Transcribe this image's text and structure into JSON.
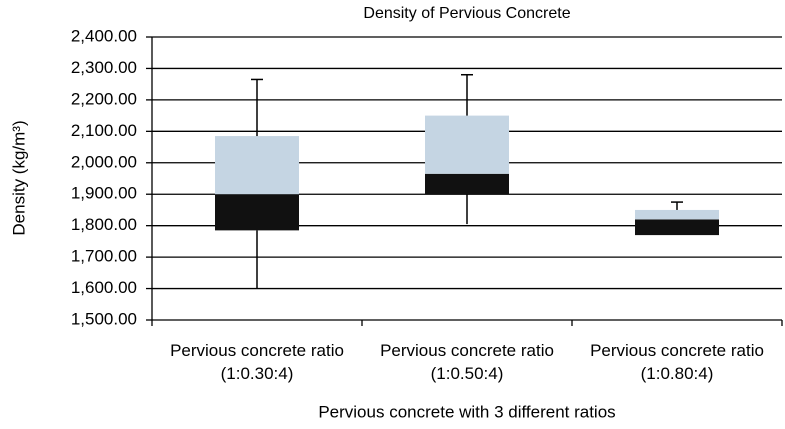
{
  "chart_data": {
    "type": "box",
    "title": "Density of Pervious Concrete",
    "x_label": "Pervious concrete with 3 different ratios",
    "y_label": "Density (kg/m³)",
    "categories": [
      "Pervious concrete ratio (1:0.30:4)",
      "Pervious concrete ratio (1:0.50:4)",
      "Pervious concrete ratio (1:0.80:4)"
    ],
    "boxes": [
      {
        "min": 1600,
        "q1": 1785,
        "median": 1900,
        "q3": 2085,
        "max": 2265
      },
      {
        "min": 1805,
        "q1": 1900,
        "median": 1965,
        "q3": 2150,
        "max": 2280
      },
      {
        "min": 1770,
        "q1": 1770,
        "median": 1820,
        "q3": 1850,
        "max": 1875
      }
    ],
    "lower_color": "#111111",
    "upper_color": "#c5d5e3",
    "ylim": [
      1500,
      2400
    ],
    "yticks": [
      {
        "value": 1500,
        "label": "1,500.00"
      },
      {
        "value": 1600,
        "label": "1,600.00"
      },
      {
        "value": 1700,
        "label": "1,700.00"
      },
      {
        "value": 1800,
        "label": "1,800.00"
      },
      {
        "value": 1900,
        "label": "1,900.00"
      },
      {
        "value": 2000,
        "label": "2,000.00"
      },
      {
        "value": 2100,
        "label": "2,100.00"
      },
      {
        "value": 2200,
        "label": "2,200.00"
      },
      {
        "value": 2300,
        "label": "2,300.00"
      },
      {
        "value": 2400,
        "label": "2,400.00"
      }
    ],
    "grid": true
  }
}
